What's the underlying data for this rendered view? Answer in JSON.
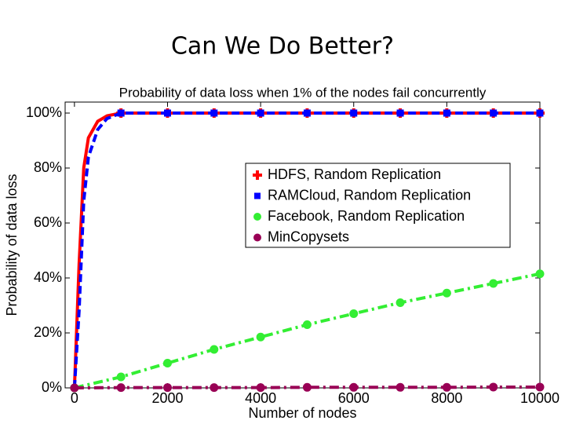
{
  "slide_title": "Can We Do Better?",
  "chart_data": {
    "type": "line",
    "title": "Probability of data loss when 1% of the nodes fail concurrently",
    "xlabel": "Number of nodes",
    "ylabel": "Probability of data loss",
    "xlim": [
      -200,
      10000
    ],
    "xticks": [
      0,
      2000,
      4000,
      6000,
      8000,
      10000
    ],
    "ylim": [
      0,
      104
    ],
    "yticks": [
      {
        "value": 0,
        "label": "0%"
      },
      {
        "value": 20,
        "label": "20%"
      },
      {
        "value": 40,
        "label": "40%"
      },
      {
        "value": 60,
        "label": "60%"
      },
      {
        "value": 80,
        "label": "80%"
      },
      {
        "value": 100,
        "label": "100%"
      }
    ],
    "legend": "upper right",
    "series": [
      {
        "name": "HDFS, Random Replication",
        "color": "#ff0000",
        "dash": "solid",
        "marker": "plus",
        "x": [
          0,
          100,
          200,
          300,
          500,
          700,
          1000,
          2000,
          3000,
          4000,
          5000,
          6000,
          7000,
          8000,
          9000,
          10000
        ],
        "values": [
          0,
          45,
          80,
          91,
          97,
          99,
          100,
          100,
          100,
          100,
          100,
          100,
          100,
          100,
          100,
          100
        ]
      },
      {
        "name": "RAMCloud, Random Replication",
        "color": "#0000ff",
        "dash": "dashed",
        "marker": "square",
        "x": [
          0,
          100,
          200,
          300,
          500,
          700,
          1000,
          2000,
          3000,
          4000,
          5000,
          6000,
          7000,
          8000,
          9000,
          10000
        ],
        "values": [
          0,
          28,
          68,
          84,
          94,
          98,
          100,
          100,
          100,
          100,
          100,
          100,
          100,
          100,
          100,
          100
        ]
      },
      {
        "name": "Facebook, Random Replication",
        "color": "#33ee33",
        "dash": "dashdot",
        "marker": "circle",
        "x": [
          0,
          1000,
          2000,
          3000,
          4000,
          5000,
          6000,
          7000,
          8000,
          9000,
          10000
        ],
        "values": [
          0,
          4,
          9,
          14,
          18.5,
          23,
          27,
          31,
          34.5,
          38,
          41.5
        ]
      },
      {
        "name": "MinCopysets",
        "color": "#990055",
        "dash": "dashdot",
        "marker": "circle",
        "x": [
          0,
          1000,
          2000,
          3000,
          4000,
          5000,
          6000,
          7000,
          8000,
          9000,
          10000
        ],
        "values": [
          0,
          0.1,
          0.1,
          0.1,
          0.1,
          0.2,
          0.2,
          0.2,
          0.2,
          0.3,
          0.3
        ]
      }
    ]
  }
}
